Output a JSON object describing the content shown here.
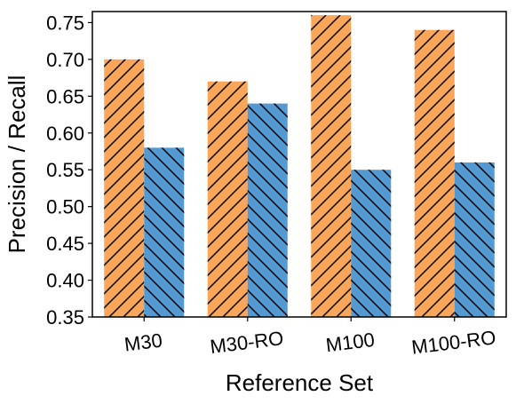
{
  "chart_data": {
    "type": "bar",
    "title": "",
    "xlabel": "Reference Set",
    "ylabel": "Precision / Recall",
    "categories": [
      "M30",
      "M30-RO",
      "M100",
      "M100-RO"
    ],
    "series": [
      {
        "color": "#F9A65A",
        "hatch": "forward-diagonal",
        "values": [
          0.7,
          0.67,
          0.76,
          0.74
        ]
      },
      {
        "color": "#5599D3",
        "hatch": "back-diagonal",
        "values": [
          0.58,
          0.64,
          0.55,
          0.56
        ]
      }
    ],
    "ylim": [
      0.35,
      0.765
    ],
    "yticks": [
      "0.35",
      "0.40",
      "0.45",
      "0.50",
      "0.55",
      "0.60",
      "0.65",
      "0.70",
      "0.75"
    ],
    "legend": "none",
    "grid": false
  }
}
